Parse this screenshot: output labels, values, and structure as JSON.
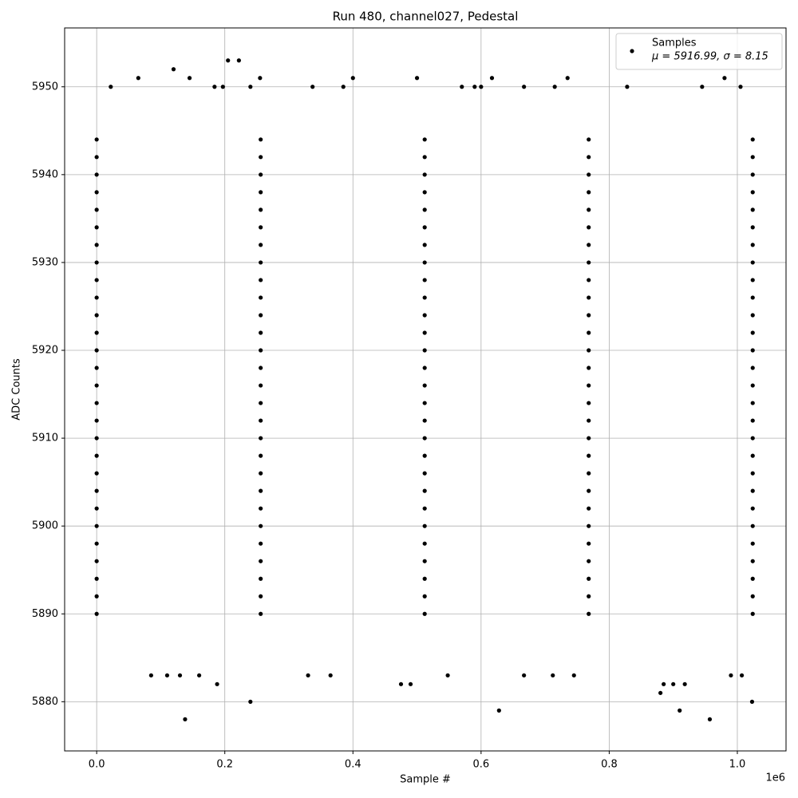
{
  "chart_data": {
    "type": "scatter",
    "title": "Run 480, channel027, Pedestal",
    "x_label": "Sample #",
    "y_label": "ADC Counts",
    "x_offset_label": "1e6",
    "xlim": [
      -50000,
      1076000
    ],
    "ylim": [
      5874.4,
      5956.7
    ],
    "xticks": [
      {
        "value": 0,
        "label": "0.0"
      },
      {
        "value": 200000,
        "label": "0.2"
      },
      {
        "value": 400000,
        "label": "0.4"
      },
      {
        "value": 600000,
        "label": "0.6"
      },
      {
        "value": 800000,
        "label": "0.8"
      },
      {
        "value": 1000000,
        "label": "1.0"
      }
    ],
    "yticks": [
      5880,
      5890,
      5900,
      5910,
      5920,
      5930,
      5940,
      5950
    ],
    "grid": true,
    "legend_position": "upper right",
    "legend_note": "μ = 5916.99, σ = 8.15",
    "series": [
      {
        "name": "Samples",
        "color": "#000000",
        "x": [
          120000,
          205000,
          222000,
          65000,
          145000,
          255000,
          400000,
          500000,
          617000,
          735000,
          980000,
          22000,
          184000,
          197000,
          240000,
          337000,
          385000,
          570000,
          590000,
          600000,
          667000,
          715000,
          828000,
          945000,
          1005000,
          138000,
          957000,
          628000,
          910000,
          240000,
          1023000,
          880000,
          188000,
          475000,
          490000,
          885000,
          900000,
          918000,
          85000,
          110000,
          130000,
          160000,
          330000,
          365000,
          548000,
          667000,
          712000,
          745000,
          990000,
          1007000,
          0,
          256000,
          512000,
          768000,
          1024000,
          0,
          256000,
          512000,
          768000,
          1024000,
          0,
          256000,
          512000,
          768000,
          1024000,
          0,
          256000,
          512000,
          768000,
          1024000,
          0,
          256000,
          512000,
          768000,
          1024000,
          0,
          256000,
          512000,
          768000,
          1024000,
          0,
          256000,
          512000,
          768000,
          1024000,
          0,
          256000,
          512000,
          768000,
          1024000,
          0,
          256000,
          512000,
          768000,
          1024000,
          0,
          256000,
          512000,
          768000,
          1024000,
          0,
          256000,
          512000,
          768000,
          1024000,
          0,
          256000,
          512000,
          768000,
          1024000,
          0,
          256000,
          512000,
          768000,
          1024000,
          0,
          256000,
          512000,
          768000,
          1024000,
          0,
          256000,
          512000,
          768000,
          1024000,
          0,
          256000,
          512000,
          768000,
          1024000,
          0,
          256000,
          512000,
          768000,
          1024000,
          0,
          256000,
          512000,
          768000,
          1024000,
          0,
          256000,
          512000,
          768000,
          1024000,
          0,
          256000,
          512000,
          768000,
          1024000,
          0,
          256000,
          512000,
          768000,
          1024000,
          0,
          256000,
          512000,
          768000,
          1024000,
          0,
          256000,
          512000,
          768000,
          1024000,
          0,
          256000,
          512000,
          768000,
          1024000,
          0,
          256000,
          512000,
          768000,
          1024000,
          0,
          256000,
          512000,
          768000,
          1024000,
          0,
          256000,
          512000,
          768000,
          1024000,
          0,
          256000,
          512000,
          768000,
          1024000
        ],
        "values": [
          5952,
          5953,
          5953,
          5951,
          5951,
          5951,
          5951,
          5951,
          5951,
          5951,
          5951,
          5950,
          5950,
          5950,
          5950,
          5950,
          5950,
          5950,
          5950,
          5950,
          5950,
          5950,
          5950,
          5950,
          5950,
          5878,
          5878,
          5879,
          5879,
          5880,
          5880,
          5881,
          5882,
          5882,
          5882,
          5882,
          5882,
          5882,
          5883,
          5883,
          5883,
          5883,
          5883,
          5883,
          5883,
          5883,
          5883,
          5883,
          5883,
          5883,
          5890,
          5890,
          5890,
          5890,
          5890,
          5892,
          5892,
          5892,
          5892,
          5892,
          5894,
          5894,
          5894,
          5894,
          5894,
          5896,
          5896,
          5896,
          5896,
          5896,
          5898,
          5898,
          5898,
          5898,
          5898,
          5900,
          5900,
          5900,
          5900,
          5900,
          5902,
          5902,
          5902,
          5902,
          5902,
          5904,
          5904,
          5904,
          5904,
          5904,
          5906,
          5906,
          5906,
          5906,
          5906,
          5908,
          5908,
          5908,
          5908,
          5908,
          5910,
          5910,
          5910,
          5910,
          5910,
          5912,
          5912,
          5912,
          5912,
          5912,
          5914,
          5914,
          5914,
          5914,
          5914,
          5916,
          5916,
          5916,
          5916,
          5916,
          5918,
          5918,
          5918,
          5918,
          5918,
          5920,
          5920,
          5920,
          5920,
          5920,
          5922,
          5922,
          5922,
          5922,
          5922,
          5924,
          5924,
          5924,
          5924,
          5924,
          5926,
          5926,
          5926,
          5926,
          5926,
          5928,
          5928,
          5928,
          5928,
          5928,
          5930,
          5930,
          5930,
          5930,
          5930,
          5932,
          5932,
          5932,
          5932,
          5932,
          5934,
          5934,
          5934,
          5934,
          5934,
          5936,
          5936,
          5936,
          5936,
          5936,
          5938,
          5938,
          5938,
          5938,
          5938,
          5940,
          5940,
          5940,
          5940,
          5940,
          5942,
          5942,
          5942,
          5942,
          5942,
          5944,
          5944,
          5944,
          5944,
          5944
        ]
      }
    ]
  }
}
